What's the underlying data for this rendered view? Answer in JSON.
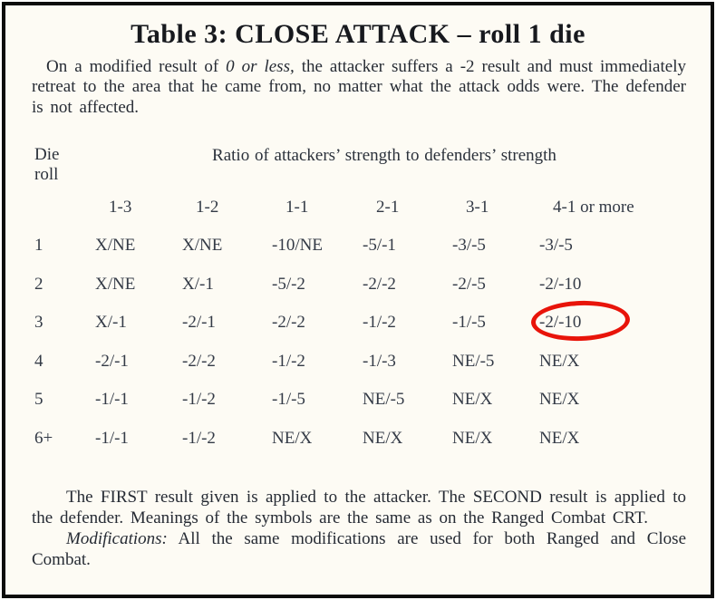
{
  "title": "Table 3: CLOSE ATTACK – roll 1 die",
  "intro": {
    "pre_italic": "On a modified result of ",
    "italic": "0 or less,",
    "post_italic": " the attacker suffers a -2 result and must immediately retreat to the area that he came from, no matter what the attack odds were. The defender is not affected."
  },
  "table": {
    "row_header_line1": "Die",
    "row_header_line2": "roll",
    "column_group_label": "Ratio of attackers’ strength to defenders’ strength",
    "columns": [
      "1-3",
      "1-2",
      "1-1",
      "2-1",
      "3-1",
      "4-1 or more"
    ],
    "rows": [
      {
        "die": "1",
        "values": [
          "X/NE",
          "X/NE",
          "-10/NE",
          "-5/-1",
          "-3/-5",
          "-3/-5"
        ]
      },
      {
        "die": "2",
        "values": [
          "X/NE",
          "X/-1",
          "-5/-2",
          "-2/-2",
          "-2/-5",
          "-2/-10"
        ]
      },
      {
        "die": "3",
        "values": [
          "X/-1",
          "-2/-1",
          "-2/-2",
          "-1/-2",
          "-1/-5",
          "-2/-10"
        ]
      },
      {
        "die": "4",
        "values": [
          "-2/-1",
          "-2/-2",
          "-1/-2",
          "-1/-3",
          "NE/-5",
          "NE/X"
        ]
      },
      {
        "die": "5",
        "values": [
          "-1/-1",
          "-1/-2",
          "-1/-5",
          "NE/-5",
          "NE/X",
          "NE/X"
        ]
      },
      {
        "die": "6+",
        "values": [
          "-1/-1",
          "-1/-2",
          "NE/X",
          "NE/X",
          "NE/X",
          "NE/X"
        ]
      }
    ],
    "annotation": {
      "shape": "red-ellipse",
      "marked_row_die": "3",
      "marked_column": "4-1 or more",
      "marked_value": "-2/-10",
      "color": "#e8140a"
    }
  },
  "notes": {
    "first": "The FIRST result given is applied to the attacker. The SECOND result is applied to the defender. Meanings of the symbols are the same as on the Ranged Combat CRT.",
    "modifications_label": "Modifications:",
    "modifications_text": " All the same modifications are used for both Ranged and Close Combat."
  },
  "colors": {
    "paper": "#fdfbf4",
    "ink": "#262b34",
    "frame_border": "#0c0c0c",
    "annotation_red": "#e8140a"
  }
}
